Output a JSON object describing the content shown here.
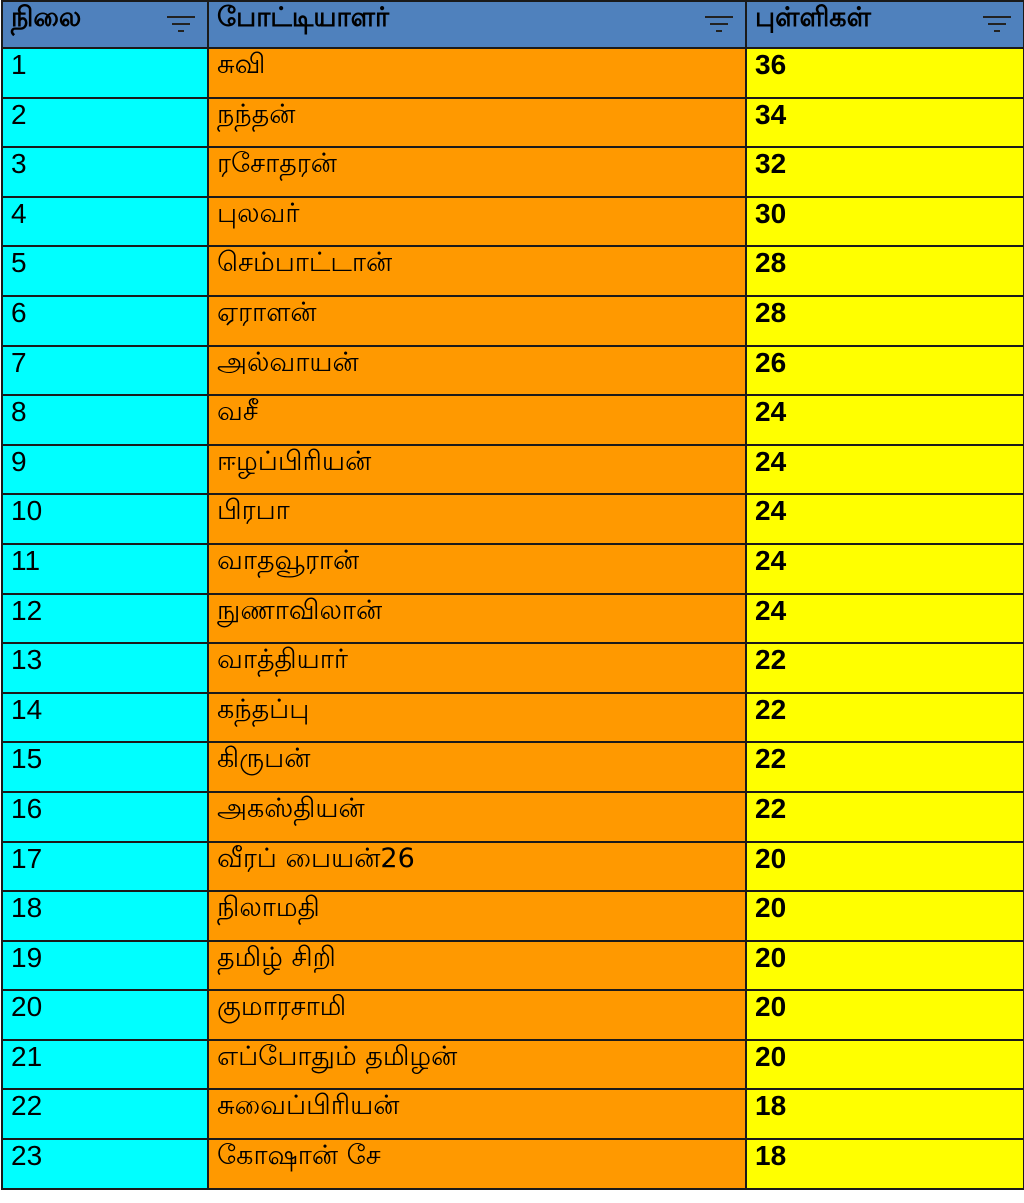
{
  "colors": {
    "header": "#4f81bd",
    "rank_column": "#00ffff",
    "name_column": "#ff9900",
    "points_column": "#ffff00"
  },
  "headers": {
    "rank": "நிலை",
    "name": "போட்டியாளர்",
    "points": "புள்ளிகள்"
  },
  "rows": [
    {
      "rank": "1",
      "name": "சுவி",
      "points": "36"
    },
    {
      "rank": "2",
      "name": "நந்தன்",
      "points": "34"
    },
    {
      "rank": "3",
      "name": "ரசோதரன்",
      "points": "32"
    },
    {
      "rank": "4",
      "name": "புலவர்",
      "points": "30"
    },
    {
      "rank": "5",
      "name": "செம்பாட்டான்",
      "points": "28"
    },
    {
      "rank": "6",
      "name": "ஏராளன்",
      "points": "28"
    },
    {
      "rank": "7",
      "name": "அல்வாயன்",
      "points": "26"
    },
    {
      "rank": "8",
      "name": "வசீ",
      "points": "24"
    },
    {
      "rank": "9",
      "name": "ஈழப்பிரியன்",
      "points": "24"
    },
    {
      "rank": "10",
      "name": "பிரபா",
      "points": "24"
    },
    {
      "rank": "11",
      "name": "வாதவூரான்",
      "points": "24"
    },
    {
      "rank": "12",
      "name": "நுணாவிலான்",
      "points": "24"
    },
    {
      "rank": "13",
      "name": "வாத்தியார்",
      "points": "22"
    },
    {
      "rank": "14",
      "name": "கந்தப்பு",
      "points": "22"
    },
    {
      "rank": "15",
      "name": "கிருபன்",
      "points": "22"
    },
    {
      "rank": "16",
      "name": "அகஸ்தியன்",
      "points": "22"
    },
    {
      "rank": "17",
      "name": "வீரப் பையன்26",
      "points": "20"
    },
    {
      "rank": "18",
      "name": "நிலாமதி",
      "points": "20"
    },
    {
      "rank": "19",
      "name": "தமிழ் சிறி",
      "points": "20"
    },
    {
      "rank": "20",
      "name": "குமாரசாமி",
      "points": "20"
    },
    {
      "rank": "21",
      "name": "எப்போதும் தமிழன்",
      "points": "20"
    },
    {
      "rank": "22",
      "name": "சுவைப்பிரியன்",
      "points": "18"
    },
    {
      "rank": "23",
      "name": "கோஷான் சே",
      "points": "18"
    }
  ]
}
